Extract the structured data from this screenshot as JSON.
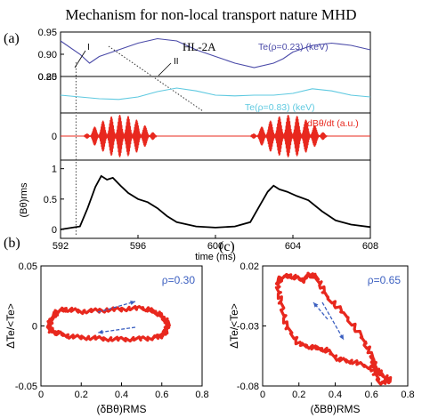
{
  "title": "Mechanism for non-local transport nature MHD",
  "panel_a": {
    "label": "(a)",
    "device": "HL-2A",
    "marker_I": "I",
    "marker_II": "II",
    "xlabel": "time (ms)",
    "xticks": [
      "592",
      "596",
      "600",
      "604",
      "608"
    ],
    "xlim": [
      592,
      608
    ],
    "subplots": [
      {
        "name": "Te(ρ=0.23) (keV)",
        "color": "#4a4aa8",
        "ylim": [
          0.2,
          0.95
        ],
        "yticks": [
          "0.95",
          "0.90",
          "0.85",
          "0.20"
        ],
        "x": [
          592,
          593,
          593.5,
          594,
          595,
          596,
          597,
          598,
          599,
          600,
          601,
          602,
          603,
          603.5,
          604,
          605,
          606,
          607,
          608
        ],
        "y": [
          0.93,
          0.9,
          0.88,
          0.895,
          0.91,
          0.925,
          0.935,
          0.93,
          0.91,
          0.895,
          0.88,
          0.87,
          0.88,
          0.89,
          0.905,
          0.92,
          0.925,
          0.92,
          0.91
        ]
      },
      {
        "name": "Te(ρ=0.83) (keV)",
        "color": "#5ec9e0",
        "x": [
          592,
          593,
          594,
          595,
          596,
          597,
          598,
          599,
          600,
          601,
          602,
          603,
          604,
          605,
          606,
          607,
          608
        ],
        "y": [
          0.5,
          0.45,
          0.4,
          0.38,
          0.45,
          0.6,
          0.7,
          0.62,
          0.5,
          0.48,
          0.5,
          0.5,
          0.55,
          0.68,
          0.62,
          0.5,
          0.45
        ]
      },
      {
        "name": "dBθ/dt (a.u.)",
        "color": "#e8281e",
        "ytick": "0",
        "bursts": [
          [
            593.2,
            597.0
          ],
          [
            601.8,
            605.8
          ]
        ]
      },
      {
        "name": "(Bθ)rms",
        "color": "#000000",
        "ylim": [
          0,
          1.2
        ],
        "yticks": [
          "0",
          "0.5",
          "1"
        ],
        "x": [
          592,
          593,
          593.4,
          593.8,
          594.1,
          594.4,
          594.7,
          595.1,
          595.5,
          596,
          596.5,
          597,
          597.5,
          598,
          599,
          600,
          601,
          601.8,
          602.3,
          602.7,
          603.0,
          603.3,
          603.7,
          604.2,
          604.8,
          605.5,
          606.2,
          607,
          608
        ],
        "y": [
          0.0,
          0.05,
          0.35,
          0.7,
          0.88,
          0.82,
          0.85,
          0.72,
          0.6,
          0.5,
          0.45,
          0.35,
          0.22,
          0.12,
          0.05,
          0.03,
          0.05,
          0.12,
          0.4,
          0.62,
          0.72,
          0.66,
          0.62,
          0.55,
          0.48,
          0.3,
          0.15,
          0.08,
          0.04
        ]
      }
    ]
  },
  "panel_b": {
    "label": "(b)",
    "annotation": "ρ=0.30",
    "xlabel": "(δBθ)RMS",
    "ylabel": "ΔTe/<Te>",
    "xticks": [
      "0",
      "0.2",
      "0.4",
      "0.6",
      "0.8"
    ],
    "yticks": [
      "0.05",
      "0",
      "-0.05"
    ],
    "xlim": [
      0,
      0.8
    ],
    "ylim": [
      -0.05,
      0.05
    ],
    "color": "#e8281e",
    "loop_x": [
      0.05,
      0.08,
      0.12,
      0.2,
      0.3,
      0.4,
      0.5,
      0.56,
      0.6,
      0.63,
      0.62,
      0.6,
      0.55,
      0.45,
      0.35,
      0.25,
      0.15,
      0.08,
      0.05,
      0.04,
      0.05
    ],
    "loop_y": [
      0.005,
      0.012,
      0.014,
      0.012,
      0.013,
      0.014,
      0.015,
      0.012,
      0.008,
      0.002,
      -0.004,
      -0.008,
      -0.01,
      -0.011,
      -0.011,
      -0.01,
      -0.009,
      -0.006,
      -0.004,
      0.0,
      0.005
    ]
  },
  "panel_c": {
    "label": "(c)",
    "annotation": "ρ=0.65",
    "xlabel": "(δBθ)RMS",
    "ylabel": "ΔTe/<Te>",
    "xticks": [
      "0",
      "0.2",
      "0.4",
      "0.6",
      "0.8"
    ],
    "yticks": [
      "0.02",
      "-0.03",
      "-0.08"
    ],
    "xlim": [
      0,
      0.8
    ],
    "ylim": [
      -0.08,
      0.02
    ],
    "color": "#e8281e",
    "loop_x": [
      0.08,
      0.1,
      0.15,
      0.22,
      0.26,
      0.3,
      0.35,
      0.45,
      0.55,
      0.6,
      0.62,
      0.65,
      0.7,
      0.65,
      0.6,
      0.5,
      0.42,
      0.35,
      0.28,
      0.2,
      0.13,
      0.1,
      0.08
    ],
    "loop_y": [
      0.005,
      0.01,
      0.012,
      0.008,
      0.013,
      0.01,
      -0.005,
      -0.02,
      -0.04,
      -0.055,
      -0.065,
      -0.07,
      -0.075,
      -0.078,
      -0.065,
      -0.06,
      -0.058,
      -0.05,
      -0.048,
      -0.045,
      -0.03,
      -0.01,
      0.005
    ]
  }
}
